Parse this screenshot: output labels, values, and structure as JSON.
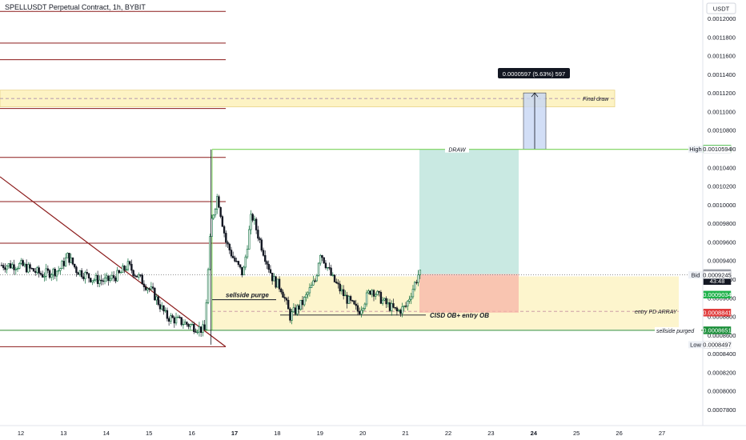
{
  "title": "SPELLUSDT Perpetual Contract, 1h, BYBIT",
  "currency": "USDT",
  "chart_data": {
    "type": "candlestick",
    "yticks": [
      "0.0012000",
      "0.0011800",
      "0.0011600",
      "0.0011400",
      "0.0011200",
      "0.0011000",
      "0.0010800",
      "0.0010600",
      "0.0010400",
      "0.0010200",
      "0.0010000",
      "0.0009800",
      "0.0009600",
      "0.0009400",
      "0.0009200",
      "0.0009000",
      "0.0008800",
      "0.0008600",
      "0.0008400",
      "0.0008200",
      "0.0008000",
      "0.0007800"
    ],
    "ytick_values": [
      0.0012,
      0.00118,
      0.00116,
      0.00114,
      0.00112,
      0.0011,
      0.00108,
      0.00106,
      0.00104,
      0.00102,
      0.001,
      0.00098,
      0.00096,
      0.00094,
      0.00092,
      0.0009,
      0.00088,
      0.00086,
      0.00084,
      0.00082,
      0.0008,
      0.00078
    ],
    "xticks": [
      "12",
      "13",
      "14",
      "15",
      "16",
      "17",
      "18",
      "19",
      "20",
      "21",
      "22",
      "23",
      "24",
      "25",
      "26",
      "27"
    ],
    "xtick_bold": [
      "17",
      "24"
    ],
    "badges": [
      {
        "label": "0.0010600",
        "value": 0.00106,
        "color": "#1b8f3a",
        "text_color": "#ffffff"
      },
      {
        "label": "0.0010599",
        "value": 0.0010599,
        "color": "#4cd137",
        "text_color": "#000000"
      },
      {
        "label": "0.0010594",
        "value": 0.0010594,
        "color": "#ffffff",
        "text_color": "#131722",
        "prefix": "High"
      },
      {
        "label": "0.0009265",
        "value": 0.0009265,
        "color": "#9598a1",
        "text_color": "#ffffff"
      },
      {
        "label": "0.0009249",
        "value": 0.0009249,
        "color": "#131722",
        "text_color": "#ffffff",
        "sub": "43:48"
      },
      {
        "label": "0.0009248",
        "value": 0.0009248,
        "color": "#ffffff",
        "text_color": "#131722",
        "prefix": "Ask"
      },
      {
        "label": "0.0009245",
        "value": 0.0009245,
        "color": "#ffffff",
        "text_color": "#131722",
        "prefix": "Bid"
      },
      {
        "label": "0.0009034",
        "value": 0.0009034,
        "color": "#1fb24b",
        "text_color": "#ffffff"
      },
      {
        "label": "0.0008841",
        "value": 0.0008841,
        "color": "#e03b3b",
        "text_color": "#ffffff"
      },
      {
        "label": "0.0008651",
        "value": 0.0008651,
        "color": "#1b8f3a",
        "text_color": "#ffffff"
      },
      {
        "label": "0.0008497",
        "value": 0.0008497,
        "color": "#ffffff",
        "text_color": "#131722",
        "prefix": "Low"
      }
    ],
    "annotations": {
      "final_draw": "Final draw",
      "draw": "DRAW",
      "sellside_purge": "sellside purge",
      "cisd": "CISD OB+ entry OB",
      "entry_pd": "entry PD ARRAY",
      "sellside_purged": "sellside purged",
      "measure": "0.0000597 (5.63%) 597"
    },
    "series": [
      {
        "name": "",
        "ohlc": []
      }
    ]
  }
}
